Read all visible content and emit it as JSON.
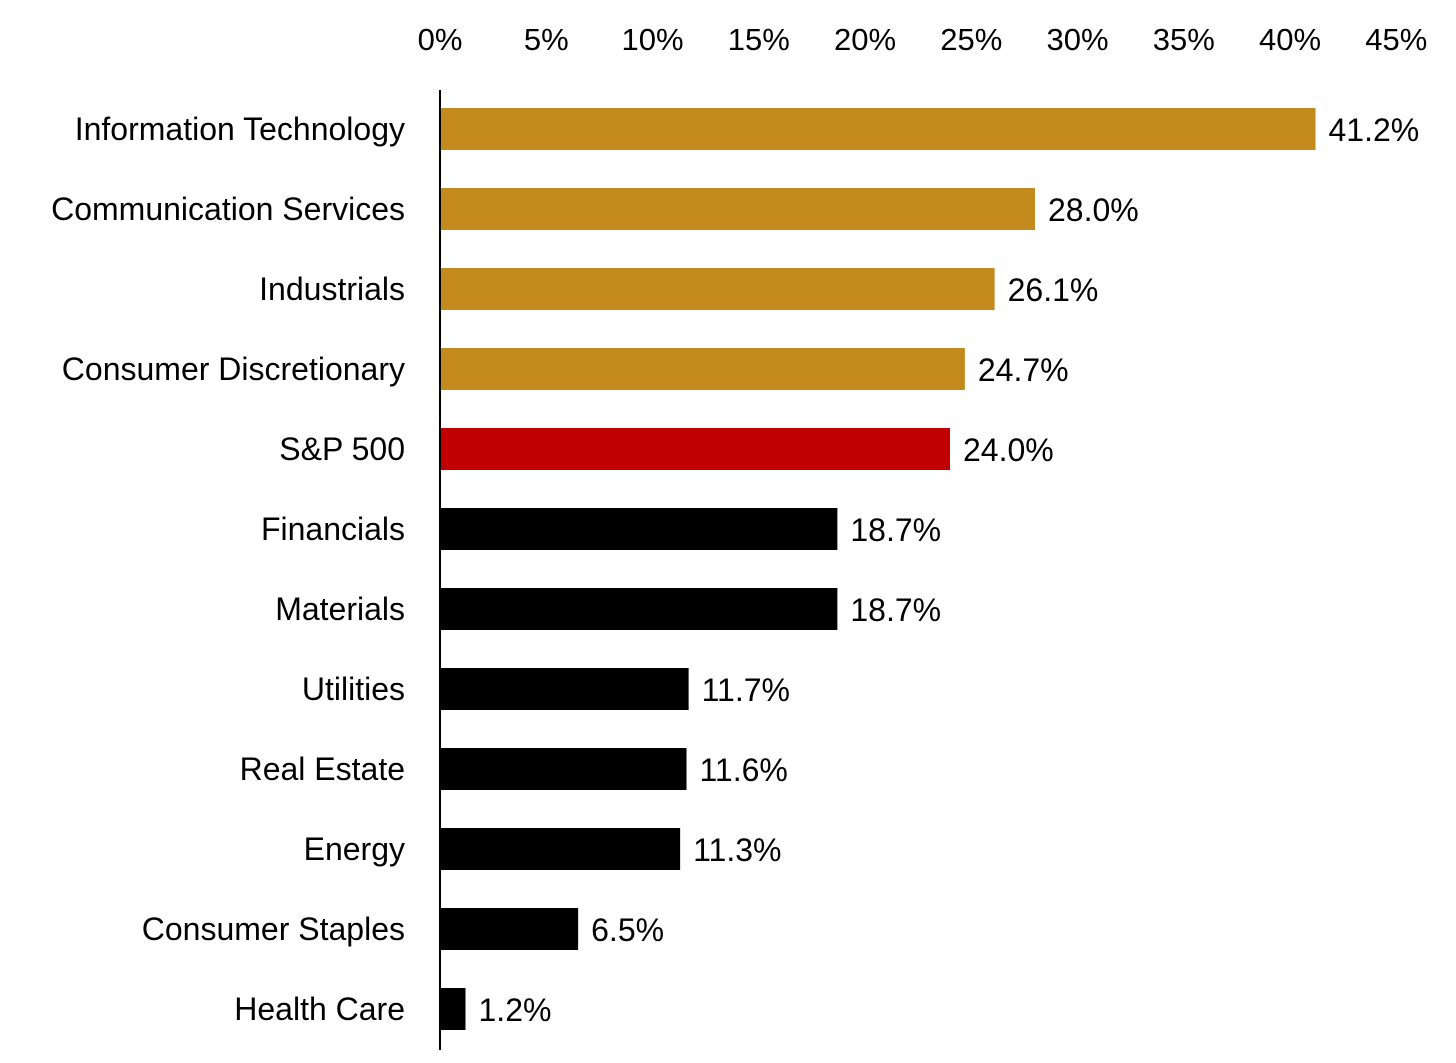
{
  "chart_data": {
    "type": "bar",
    "orientation": "horizontal",
    "categories": [
      "Information Technology",
      "Communication Services",
      "Industrials",
      "Consumer Discretionary",
      "S&P 500",
      "Financials",
      "Materials",
      "Utilities",
      "Real Estate",
      "Energy",
      "Consumer Staples",
      "Health Care"
    ],
    "values": [
      41.2,
      28.0,
      26.1,
      24.7,
      24.0,
      18.7,
      18.7,
      11.7,
      11.6,
      11.3,
      6.5,
      1.2
    ],
    "value_labels": [
      "41.2%",
      "28.0%",
      "26.1%",
      "24.7%",
      "24.0%",
      "18.7%",
      "18.7%",
      "11.7%",
      "11.6%",
      "11.3%",
      "6.5%",
      "1.2%"
    ],
    "bar_colors": [
      "#c38a1d",
      "#c38a1d",
      "#c38a1d",
      "#c38a1d",
      "#c00000",
      "#000000",
      "#000000",
      "#000000",
      "#000000",
      "#000000",
      "#000000",
      "#000000"
    ],
    "xticks": [
      0,
      5,
      10,
      15,
      20,
      25,
      30,
      35,
      40,
      45
    ],
    "xtick_labels": [
      "0%",
      "5%",
      "10%",
      "15%",
      "20%",
      "25%",
      "30%",
      "35%",
      "40%",
      "45%"
    ],
    "xlim": [
      0,
      45
    ],
    "x_axis_position": "top",
    "grid": false,
    "legend": false,
    "title": "",
    "xlabel": "",
    "ylabel": ""
  }
}
